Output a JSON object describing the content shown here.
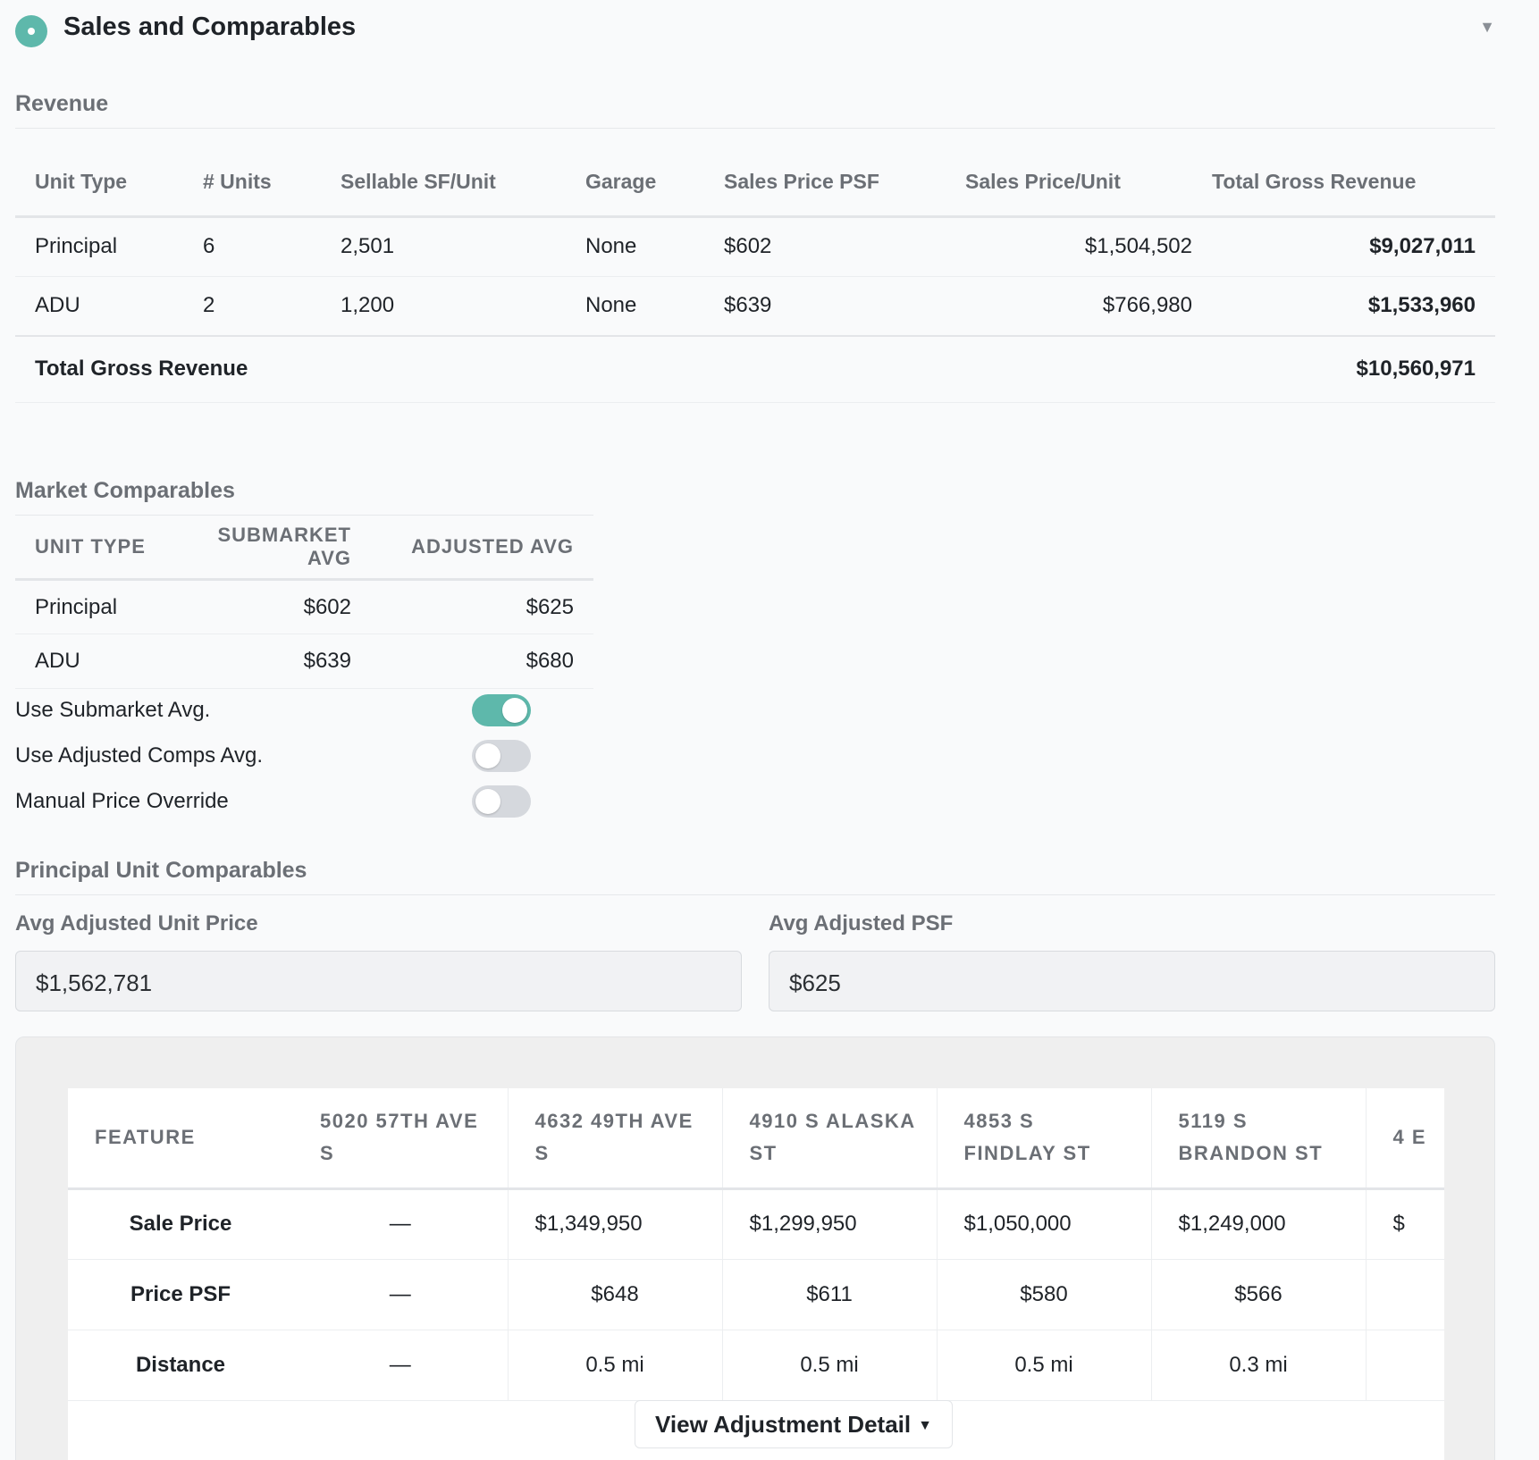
{
  "header": {
    "title": "Sales and Comparables",
    "collapse_icon": "▼"
  },
  "revenue": {
    "title": "Revenue",
    "columns": [
      "Unit Type",
      "# Units",
      "Sellable SF/Unit",
      "Garage",
      "Sales Price PSF",
      "Sales Price/Unit",
      "Total Gross Revenue"
    ],
    "rows": [
      [
        "Principal",
        "6",
        "2,501",
        "None",
        "$602",
        "$1,504,502",
        "$9,027,011"
      ],
      [
        "ADU",
        "2",
        "1,200",
        "None",
        "$639",
        "$766,980",
        "$1,533,960"
      ]
    ],
    "total_label": "Total Gross Revenue",
    "total_value": "$10,560,971"
  },
  "market": {
    "title": "Market Comparables",
    "columns": [
      "UNIT TYPE",
      "SUBMARKET AVG",
      "ADJUSTED AVG"
    ],
    "rows": [
      [
        "Principal",
        "$602",
        "$625"
      ],
      [
        "ADU",
        "$639",
        "$680"
      ]
    ],
    "toggles": [
      {
        "label": "Use Submarket Avg.",
        "on": true
      },
      {
        "label": "Use Adjusted Comps Avg.",
        "on": false
      },
      {
        "label": "Manual Price Override",
        "on": false
      }
    ]
  },
  "principal": {
    "title": "Principal Unit Comparables",
    "avg_unit_price_label": "Avg Adjusted Unit Price",
    "avg_unit_price_value": "$1,562,781",
    "avg_psf_label": "Avg Adjusted PSF",
    "avg_psf_value": "$625",
    "comps": {
      "headers": [
        "FEATURE",
        "5020 57TH AVE S",
        "4632 49TH AVE S",
        "4910 S ALASKA ST",
        "4853 S FINDLAY ST",
        "5119 S BRANDON ST",
        "4 E"
      ],
      "rows": [
        [
          "Sale Price",
          "—",
          "$1,349,950",
          "$1,299,950",
          "$1,050,000",
          "$1,249,000",
          "$"
        ],
        [
          "Price PSF",
          "—",
          "$648",
          "$611",
          "$580",
          "$566",
          ""
        ],
        [
          "Distance",
          "—",
          "0.5 mi",
          "0.5 mi",
          "0.5 mi",
          "0.3 mi",
          ""
        ]
      ]
    },
    "adjustment_button": "View Adjustment Detail",
    "adjustment_caret": "▼"
  }
}
